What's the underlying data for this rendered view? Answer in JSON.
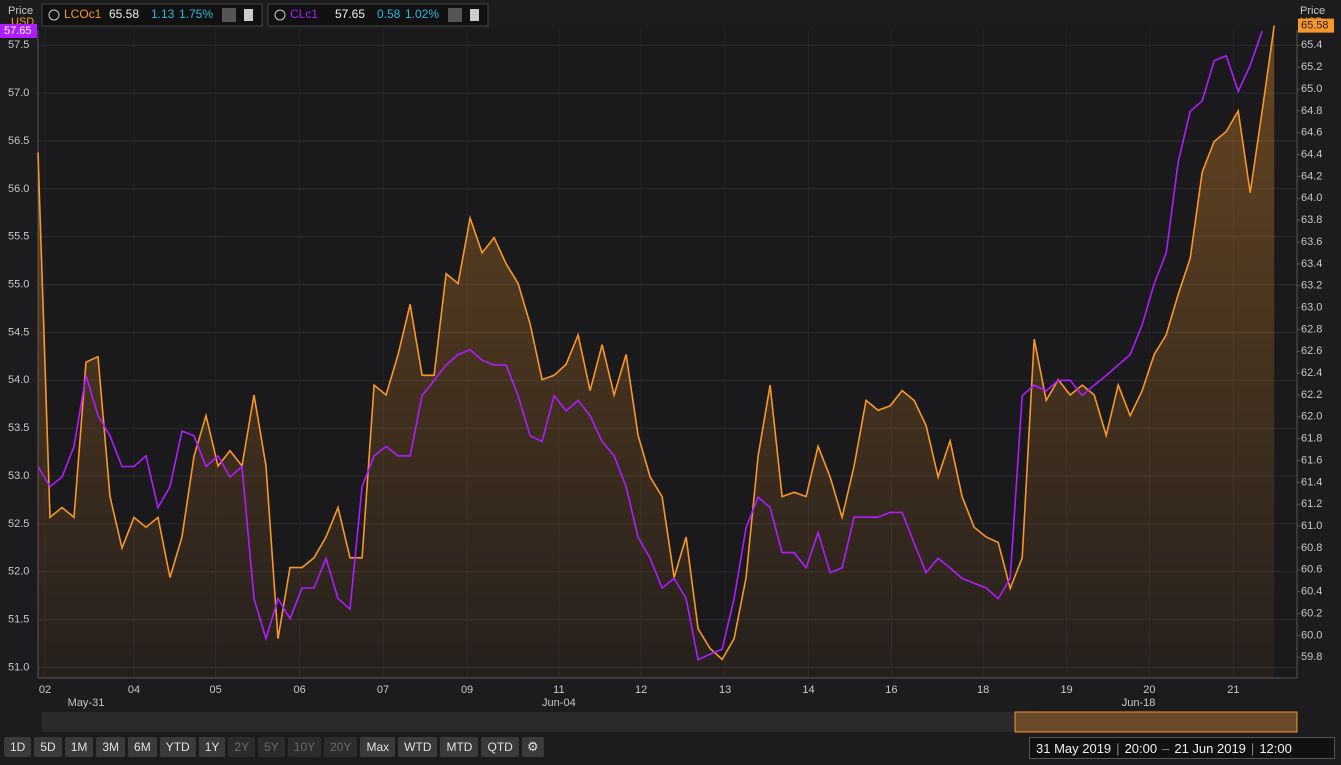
{
  "chart_data": {
    "type": "line",
    "left_axis_title": [
      "Price",
      "USD"
    ],
    "right_axis_title": [
      "Price",
      "USD"
    ],
    "x": [
      0,
      1,
      2,
      3,
      4,
      5,
      6,
      7,
      8,
      9,
      10,
      11,
      12,
      13,
      14,
      15,
      16,
      17,
      18,
      19,
      20,
      21,
      22,
      23,
      24,
      25,
      26,
      27,
      28,
      29,
      30,
      31,
      32,
      33,
      34,
      35,
      36,
      37,
      38,
      39,
      40,
      41,
      42,
      43,
      44,
      45,
      46,
      47,
      48,
      49,
      50,
      51,
      52,
      53,
      54,
      55,
      56,
      57,
      58,
      59,
      60,
      61,
      62,
      63,
      64,
      65,
      66,
      67,
      68,
      69,
      70,
      71,
      72,
      73,
      74,
      75,
      76,
      77,
      78,
      79,
      80,
      81,
      82,
      83,
      84,
      85,
      86,
      87,
      88,
      89,
      90,
      91,
      92,
      93,
      94,
      95,
      96,
      97,
      98,
      99,
      100,
      101,
      102,
      103
    ],
    "xlim": [
      0,
      104.9
    ],
    "xticks": [
      {
        "value": 0.58,
        "label": "02"
      },
      {
        "value": 8.0,
        "label": "04"
      },
      {
        "value": 14.8,
        "label": "05"
      },
      {
        "value": 21.8,
        "label": "06"
      },
      {
        "value": 28.75,
        "label": "07"
      },
      {
        "value": 35.75,
        "label": "09"
      },
      {
        "value": 43.4,
        "label": "11"
      },
      {
        "value": 50.25,
        "label": "12"
      },
      {
        "value": 57.25,
        "label": "13"
      },
      {
        "value": 64.2,
        "label": "14"
      },
      {
        "value": 71.1,
        "label": "16"
      },
      {
        "value": 78.75,
        "label": "18"
      },
      {
        "value": 85.7,
        "label": "19"
      },
      {
        "value": 92.6,
        "label": "20"
      },
      {
        "value": 99.6,
        "label": "21"
      }
    ],
    "xticks_secondary": [
      {
        "value": 4.0,
        "label": "May-31"
      },
      {
        "value": 43.4,
        "label": "Jun-04"
      },
      {
        "value": 91.7,
        "label": "Jun-18"
      }
    ],
    "ylim": [
      50.89,
      57.66
    ],
    "yticks": [
      {
        "value": 51,
        "label": "51.0"
      },
      51.5,
      {
        "value": 52,
        "label": "52.0"
      },
      52.5,
      {
        "value": 53,
        "label": "53.0"
      },
      53.5,
      {
        "value": 54,
        "label": "54.0"
      },
      54.5,
      {
        "value": 55,
        "label": "55.0"
      },
      55.5,
      {
        "value": 56,
        "label": "56.0"
      },
      56.5,
      {
        "value": 57,
        "label": "57.0"
      },
      57.5
    ],
    "y2lim": [
      59.61,
      65.54
    ],
    "y2ticks": [
      59.8,
      {
        "value": 60,
        "label": "60.0"
      },
      60.2,
      60.4,
      60.6,
      60.8,
      {
        "value": 61,
        "label": "61.0"
      },
      61.2,
      61.4,
      61.6,
      61.8,
      {
        "value": 62,
        "label": "62.0"
      },
      62.2,
      62.4,
      62.6,
      62.8,
      {
        "value": 63,
        "label": "63.0"
      },
      63.2,
      63.4,
      63.6,
      63.8,
      {
        "value": 64,
        "label": "64.0"
      },
      64.2,
      64.4,
      64.6,
      64.8,
      {
        "value": 65,
        "label": "65.0"
      },
      65.2,
      65.4
    ],
    "grid": true,
    "series": [
      {
        "name": "LCOc1",
        "color": "#f7962b",
        "axis": "y2",
        "area": true,
        "change": "1.13",
        "change_pct": "1.75%",
        "values": [
          64.42,
          61.08,
          61.17,
          61.08,
          62.5,
          62.55,
          61.27,
          60.8,
          61.08,
          60.99,
          61.08,
          60.53,
          60.9,
          61.64,
          62.01,
          61.55,
          61.69,
          61.55,
          62.2,
          61.55,
          59.97,
          60.62,
          60.62,
          60.71,
          60.9,
          61.17,
          60.71,
          60.71,
          62.29,
          62.2,
          62.57,
          63.03,
          62.38,
          62.38,
          63.31,
          63.22,
          63.82,
          63.5,
          63.64,
          63.4,
          63.22,
          62.85,
          62.34,
          62.38,
          62.48,
          62.75,
          62.24,
          62.66,
          62.2,
          62.57,
          61.83,
          61.45,
          61.27,
          60.53,
          60.9,
          60.06,
          59.88,
          59.78,
          59.97,
          60.53,
          61.64,
          62.29,
          61.27,
          61.31,
          61.27,
          61.73,
          61.45,
          61.08,
          61.55,
          62.15,
          62.06,
          62.1,
          62.24,
          62.15,
          61.92,
          61.45,
          61.78,
          61.27,
          60.99,
          60.9,
          60.85,
          60.43,
          60.71,
          62.71,
          62.15,
          62.34,
          62.2,
          62.29,
          62.2,
          61.83,
          62.29,
          62.01,
          62.24,
          62.57,
          62.75,
          63.12,
          63.45,
          64.24,
          64.52,
          64.61,
          64.8,
          64.05,
          64.8,
          65.58
        ]
      },
      {
        "name": "CLc1",
        "color": "#b01cff",
        "change": "0.58",
        "change_pct": "1.02%",
        "values": [
          53.1,
          52.89,
          52.99,
          53.31,
          54.05,
          53.63,
          53.42,
          53.1,
          53.1,
          53.21,
          52.67,
          52.89,
          53.47,
          53.42,
          53.1,
          53.21,
          52.99,
          53.1,
          51.72,
          51.3,
          51.72,
          51.51,
          51.83,
          51.83,
          52.14,
          51.72,
          51.61,
          52.89,
          53.21,
          53.31,
          53.21,
          53.21,
          53.84,
          54.0,
          54.16,
          54.27,
          54.32,
          54.21,
          54.16,
          54.16,
          53.84,
          53.42,
          53.36,
          53.84,
          53.68,
          53.79,
          53.63,
          53.36,
          53.21,
          52.89,
          52.36,
          52.14,
          51.83,
          51.93,
          51.72,
          51.08,
          51.14,
          51.19,
          51.72,
          52.46,
          52.78,
          52.67,
          52.2,
          52.2,
          52.04,
          52.41,
          51.99,
          52.04,
          52.57,
          52.57,
          52.57,
          52.62,
          52.62,
          52.3,
          51.99,
          52.14,
          52.04,
          51.93,
          51.88,
          51.83,
          51.72,
          51.93,
          53.84,
          53.95,
          53.89,
          54.0,
          54.0,
          53.84,
          53.95,
          54.05,
          54.16,
          54.27,
          54.58,
          55.01,
          55.33,
          56.28,
          56.81,
          56.92,
          57.34,
          57.39,
          57.02,
          57.29,
          57.65,
          null
        ]
      }
    ]
  },
  "toolbar": {
    "buttons": [
      "1D",
      "5D",
      "1M",
      "3M",
      "6M",
      "YTD",
      "1Y",
      "2Y",
      "5Y",
      "10Y",
      "20Y",
      "Max",
      "WTD",
      "MTD",
      "QTD"
    ],
    "disabled": [
      "2Y",
      "5Y",
      "10Y",
      "20Y"
    ]
  },
  "range": {
    "start_date": "31 May 2019",
    "start_time": "20:00",
    "end_date": "21 Jun 2019",
    "end_time": "12:00"
  }
}
